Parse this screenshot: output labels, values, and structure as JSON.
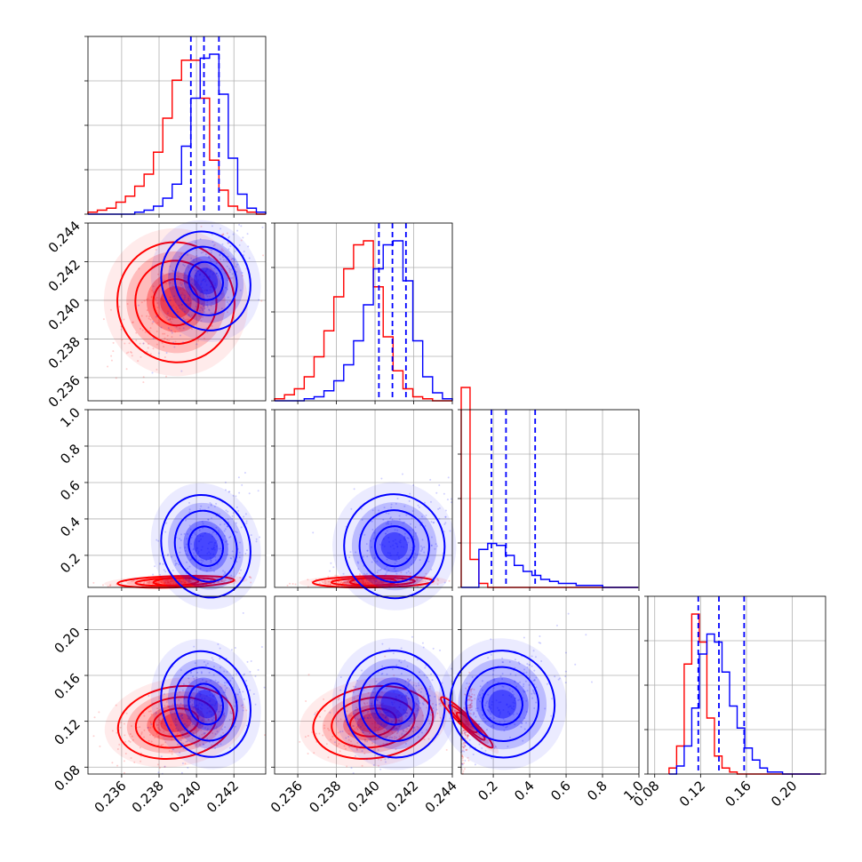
{
  "chart_data": {
    "type": "corner",
    "parameters": [
      "",
      "",
      "",
      ""
    ],
    "ranges": [
      [
        0.2342,
        0.2437
      ],
      [
        0.2348,
        0.244
      ],
      [
        0.024,
        1.0
      ],
      [
        0.074,
        0.229
      ]
    ],
    "ticks": [
      [
        0.236,
        0.238,
        0.24,
        0.242
      ],
      [
        0.236,
        0.238,
        0.24,
        0.242,
        0.244
      ],
      [
        0.2,
        0.4,
        0.6,
        0.8,
        1.0
      ],
      [
        0.08,
        0.12,
        0.16,
        0.2
      ]
    ],
    "tick_labels": [
      [
        "0.236",
        "0.238",
        "0.240",
        "0.242"
      ],
      [
        "0.236",
        "0.238",
        "0.240",
        "0.242",
        "0.244"
      ],
      [
        "0.2",
        "0.4",
        "0.6",
        "0.8",
        "1.0"
      ],
      [
        "0.08",
        "0.12",
        "0.16",
        "0.20"
      ]
    ],
    "grid": true,
    "series": [
      {
        "color": "#ff0000",
        "marginals": [
          {
            "edges": [
              0.2342,
              0.2437
            ],
            "counts": [
              1,
              2,
              3,
              6,
              9,
              14,
              20,
              31,
              48,
              67,
              77,
              77,
              58,
              27,
              12,
              4,
              2,
              1,
              0
            ]
          },
          {
            "edges": [
              0.2348,
              0.244
            ],
            "counts": [
              1,
              3,
              6,
              12,
              22,
              35,
              52,
              66,
              78,
              80,
              57,
              32,
              15,
              6,
              2,
              1,
              0,
              0
            ]
          },
          {
            "edges": [
              0.024,
              0.995
            ],
            "counts": [
              100,
              14,
              2,
              0,
              0,
              0,
              0,
              0,
              0,
              0,
              0,
              0,
              0,
              0,
              0,
              0,
              0,
              0,
              0,
              0
            ]
          },
          {
            "edges": [
              0.0925,
              0.2245
            ],
            "counts": [
              3,
              14,
              55,
              80,
              66,
              28,
              9,
              3,
              1,
              0,
              0,
              0,
              0,
              0,
              0,
              0,
              0,
              0,
              0,
              0
            ]
          }
        ],
        "centers": [
          0.2389,
          0.2399,
          0.055,
          0.119
        ],
        "spreads": [
          0.0012,
          0.0012,
          0.012,
          0.012
        ]
      },
      {
        "color": "#0000ff",
        "marginals": [
          {
            "edges": [
              0.2342,
              0.2437
            ],
            "counts": [
              0,
              0,
              0,
              0,
              0,
              1,
              2,
              4,
              8,
              15,
              34,
              58,
              78,
              80,
              60,
              28,
              10,
              3,
              1
            ]
          },
          {
            "edges": [
              0.2348,
              0.244
            ],
            "counts": [
              0,
              0,
              0,
              1,
              2,
              5,
              10,
              18,
              30,
              48,
              66,
              78,
              80,
              60,
              30,
              12,
              4,
              1
            ]
          },
          {
            "edges": [
              0.024,
              0.995
            ],
            "counts": [
              0,
              0,
              19,
              22,
              21,
              16,
              11,
              8,
              6,
              4,
              3,
              2,
              2,
              1,
              1,
              1,
              0,
              0,
              0,
              0
            ]
          },
          {
            "edges": [
              0.0925,
              0.2245
            ],
            "counts": [
              0,
              4,
              14,
              33,
              60,
              70,
              66,
              51,
              34,
              23,
              13,
              7,
              3,
              1,
              1,
              0,
              0,
              0,
              0,
              0
            ]
          }
        ],
        "centers": [
          0.2405,
          0.241,
          0.25,
          0.135
        ],
        "spreads": [
          0.0009,
          0.001,
          0.11,
          0.018
        ]
      }
    ],
    "quantiles": [
      [
        0.2397,
        0.2404,
        0.2412
      ],
      [
        0.2402,
        0.2409,
        0.2416
      ],
      [
        0.19,
        0.27,
        0.43
      ],
      [
        0.118,
        0.136,
        0.158
      ]
    ]
  }
}
